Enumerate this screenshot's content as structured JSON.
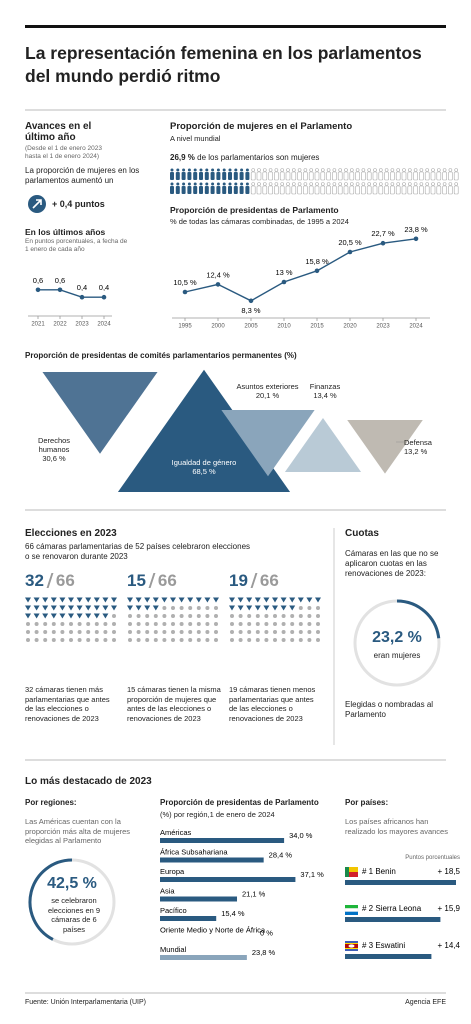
{
  "header": {
    "title": "La representación femenina en los parlamentos del mundo perdió ritmo"
  },
  "advances": {
    "title": "Avances en el último año",
    "period": "(Desde el 1 de enero 2023 hasta el 1 de enero 2024)",
    "text": "La proporción de mujeres en los parlamentos aumentó un",
    "change_label": "+ 0,4 puntos",
    "recent": {
      "type": "line",
      "title": "En los últimos años",
      "subtitle": "En puntos porcentuales, a fecha de 1 enero de cada año",
      "categories": [
        "2021",
        "2022",
        "2023",
        "2024"
      ],
      "values": [
        0.6,
        0.6,
        0.4,
        0.4
      ],
      "value_labels": [
        "0,6",
        "0,6",
        "0,4",
        "0,4"
      ],
      "ylim": [
        0,
        1
      ],
      "color": "#2a5a80"
    }
  },
  "world": {
    "title": "Proporción de mujeres en el Parlamento",
    "subtitle": "A nivel mundial",
    "value": 26.9,
    "value_label": "26,9 %",
    "text": "de los parlamentarios son mujeres",
    "color": "#2a5a80"
  },
  "speakers": {
    "type": "line",
    "title": "Proporción de presidentas de Parlamento",
    "subtitle": "% de todas las cámaras combinadas, de 1995 a 2024",
    "categories": [
      "1995",
      "2000",
      "2005",
      "2010",
      "2015",
      "2020",
      "2023",
      "2024"
    ],
    "values": [
      10.5,
      12.4,
      8.3,
      13,
      15.8,
      20.5,
      22.7,
      23.8
    ],
    "value_labels": [
      "10,5 %",
      "12,4 %",
      "8,3 %",
      "13 %",
      "15,8 %",
      "20,5 %",
      "22,7 %",
      "23,8 %"
    ],
    "ylim": [
      5,
      26
    ],
    "color": "#2a5a80"
  },
  "committees": {
    "type": "triangle",
    "title": "Proporción de presidentas de comités parlamentarios permanentes (%)",
    "categories": [
      "Derechos humanos",
      "Igualdad de género",
      "Asuntos exteriores",
      "Finanzas",
      "Defensa"
    ],
    "values": [
      30.6,
      68.5,
      20.1,
      13.4,
      13.2
    ],
    "value_labels": [
      "30,6 %",
      "68,5 %",
      "20,1 %",
      "13,4 %",
      "13,2 %"
    ],
    "colors": [
      "#4f7394",
      "#2a5a80",
      "#8aa5bb",
      "#b9cad6",
      "#bfbab2"
    ]
  },
  "elections": {
    "title": "Elecciones en 2023",
    "subtitle": "66 cámaras parlamentarias de 52 países celebraron elecciones o se renovaron durante 2023",
    "color": "#2a5a80",
    "groups": [
      {
        "count": 32,
        "total": 66,
        "text": "32 cámaras tienen más parlamentarias que antes de las elecciones o renovaciones de 2023"
      },
      {
        "count": 15,
        "total": 66,
        "text": "15 cámaras tienen la misma proporción de mujeres que antes de las elecciones o renovaciones de 2023"
      },
      {
        "count": 19,
        "total": 66,
        "text": "19 cámaras tienen menos parlamentarias que antes de las elecciones o renovaciones de 2023"
      }
    ]
  },
  "quotas": {
    "title": "Cuotas",
    "text": "Cámaras en las que no se aplicaron cuotas en las renovaciones de 2023:",
    "value": 23.2,
    "value_label": "23,2 %",
    "value_text": "eran mujeres",
    "note": "Elegidas o nombradas al Parlamento",
    "color": "#2a5a80"
  },
  "highlights": {
    "title": "Lo más destacado de 2023",
    "regions": {
      "title": "Por regiones:",
      "text": "Las Américas cuentan con la proporción más alta de mujeres elegidas al Parlamento",
      "value": 42.5,
      "value_label": "42,5 %",
      "value_text": "se celebraron elecciones en 9 cámaras de 6 países",
      "color": "#2a5a80"
    },
    "regional_speakers": {
      "type": "bar",
      "title": "Proporción de presidentas de Parlamento",
      "subtitle": "(%) por región,1 de enero de 2024",
      "categories": [
        "Américas",
        "África Subsahariana",
        "Europa",
        "Asia",
        "Pacífico",
        "Oriente Medio y Norte de África",
        "Mundial"
      ],
      "values": [
        34.0,
        28.4,
        37.1,
        21.1,
        15.4,
        0,
        23.8
      ],
      "value_labels": [
        "34,0 %",
        "28,4 %",
        "37,1 %",
        "21,1 %",
        "15,4 %",
        "0 %",
        "23,8 %"
      ],
      "xlim": [
        0,
        40
      ],
      "colors": [
        "#2a5a80",
        "#2a5a80",
        "#2a5a80",
        "#2a5a80",
        "#2a5a80",
        "#2a5a80",
        "#8aa5bb"
      ]
    },
    "countries": {
      "type": "bar",
      "title": "Por países:",
      "text": "Los países africanos han realizado los mayores avances",
      "unit": "Puntos porcentuales",
      "categories": [
        "# 1 Benin",
        "# 2 Sierra Leona",
        "# 3 Eswatini"
      ],
      "values": [
        18.5,
        15.9,
        14.4
      ],
      "value_labels": [
        "+ 18,5",
        "+ 15,9",
        "+ 14,4"
      ],
      "xlim": [
        0,
        20
      ],
      "color": "#2a5a80"
    }
  },
  "footer": {
    "source": "Fuente: Unión Interparlamentaria (UIP)",
    "credit": "Agencia EFE"
  }
}
